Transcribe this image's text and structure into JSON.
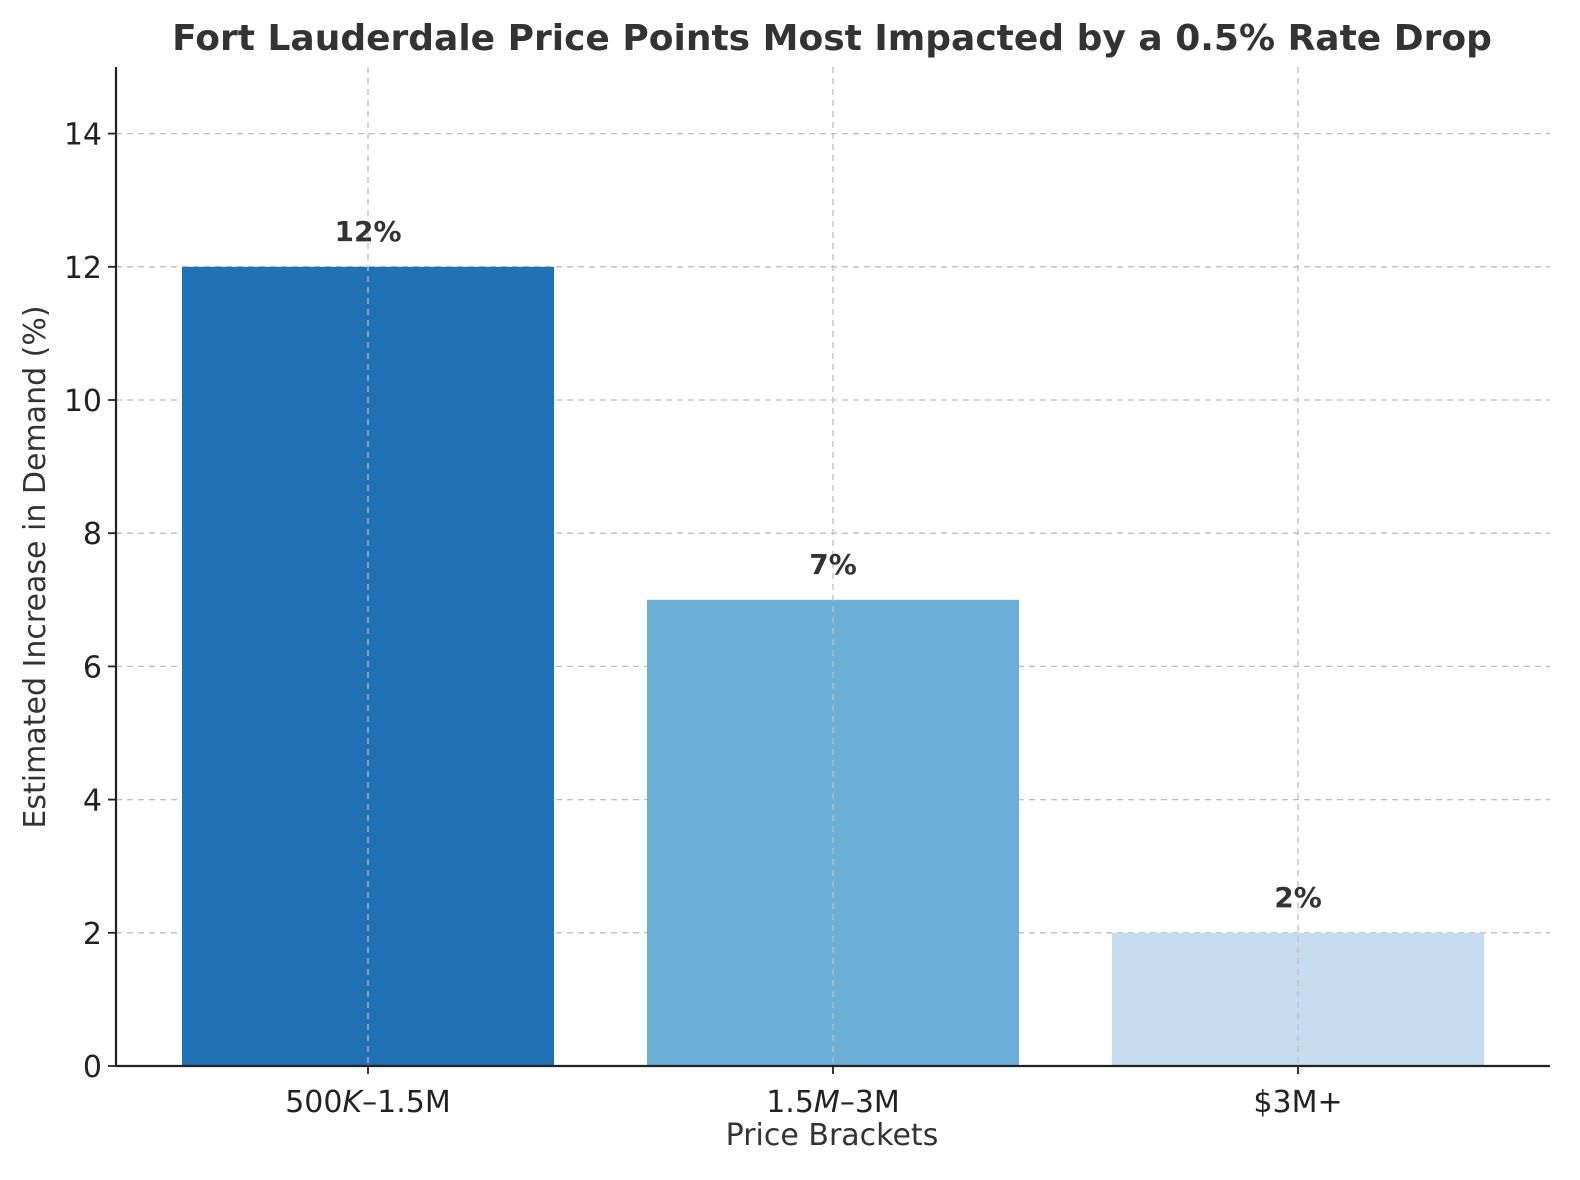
{
  "chart_data": {
    "type": "bar",
    "title": "Fort Lauderdale Price Points Most Impacted by a 0.5% Rate Drop",
    "xlabel": "Price Brackets",
    "ylabel": "Estimated Increase in Demand (%)",
    "categories": [
      "500K–1.5M",
      "1.5M–3M",
      "$3M+"
    ],
    "category_parts": [
      [
        {
          "text": "500",
          "italic": false
        },
        {
          "text": "K",
          "italic": true
        },
        {
          "text": "–1.5M",
          "italic": false
        }
      ],
      [
        {
          "text": "1.5",
          "italic": false
        },
        {
          "text": "M",
          "italic": true
        },
        {
          "text": "–3M",
          "italic": false
        }
      ],
      [
        {
          "text": "$3M+",
          "italic": false
        }
      ]
    ],
    "values": [
      12,
      7,
      2
    ],
    "data_labels": [
      "12%",
      "7%",
      "2%"
    ],
    "colors": [
      "#2171b5",
      "#6baed6",
      "#c6dbef"
    ],
    "ylim": [
      0,
      15
    ],
    "yticks": [
      0,
      2,
      4,
      6,
      8,
      10,
      12,
      14
    ],
    "grid": true
  }
}
